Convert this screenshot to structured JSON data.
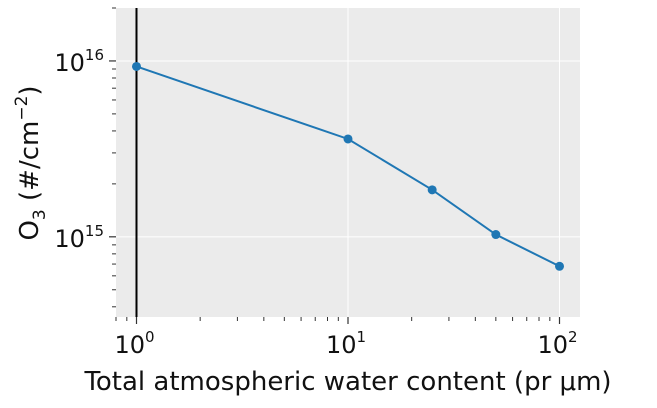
{
  "chart_data": {
    "type": "line",
    "title": "",
    "xlabel": "Total atmospheric water content (pr μm)",
    "ylabel_main": "O",
    "ylabel_sub": "3",
    "ylabel_rest": " (#/cm",
    "ylabel_sup": "−2",
    "ylabel_close": ")",
    "xscale": "log",
    "yscale": "log",
    "xlim": [
      0.8,
      125
    ],
    "ylim": [
      350000000000000.0,
      2e+16
    ],
    "grid": true,
    "background": "#ebebeb",
    "line_color": "#1f77b4",
    "vline_x": 1,
    "x_ticks": [
      {
        "value": 1,
        "base": "10",
        "exp": "0"
      },
      {
        "value": 10,
        "base": "10",
        "exp": "1"
      },
      {
        "value": 100,
        "base": "10",
        "exp": "2"
      }
    ],
    "y_ticks": [
      {
        "value": 1000000000000000.0,
        "base": "10",
        "exp": "15"
      },
      {
        "value": 1e+16,
        "base": "10",
        "exp": "16"
      }
    ],
    "series": [
      {
        "x": [
          1,
          10,
          25,
          50,
          100
        ],
        "y": [
          9300000000000000.0,
          3600000000000000.0,
          1850000000000000.0,
          1030000000000000.0,
          680000000000000.0
        ]
      }
    ]
  }
}
